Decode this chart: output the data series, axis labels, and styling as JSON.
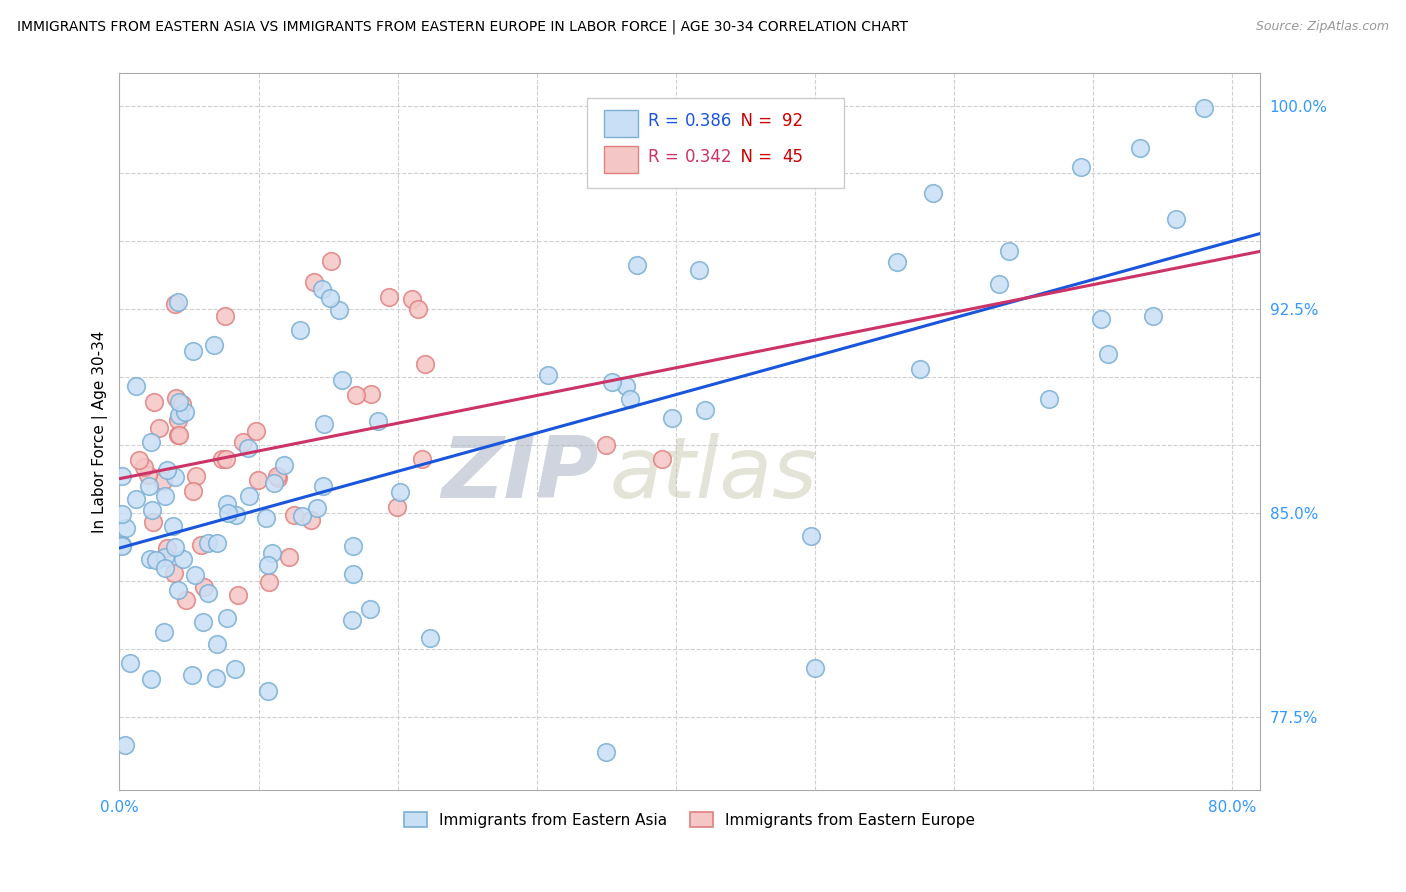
{
  "title": "IMMIGRANTS FROM EASTERN ASIA VS IMMIGRANTS FROM EASTERN EUROPE IN LABOR FORCE | AGE 30-34 CORRELATION CHART",
  "source": "Source: ZipAtlas.com",
  "ylabel": "In Labor Force | Age 30-34",
  "xlim": [
    0.0,
    0.82
  ],
  "ylim": [
    0.748,
    1.012
  ],
  "R_asia": 0.386,
  "N_asia": 92,
  "R_europe": 0.342,
  "N_europe": 45,
  "color_asia_face": "#c9dff5",
  "color_asia_edge": "#7bafd4",
  "color_europe_face": "#f5c6c6",
  "color_europe_edge": "#e08080",
  "trend_color_asia": "#1a56db",
  "trend_color_europe": "#cc3366",
  "watermark_zip": "ZIP",
  "watermark_atlas": "atlas",
  "legend_label_asia": "Immigrants from Eastern Asia",
  "legend_label_europe": "Immigrants from Eastern Europe",
  "xtick_positions": [
    0.0,
    0.1,
    0.2,
    0.3,
    0.4,
    0.5,
    0.6,
    0.7,
    0.8
  ],
  "xtick_labels": [
    "0.0%",
    "",
    "",
    "",
    "",
    "",
    "",
    "",
    "80.0%"
  ],
  "ytick_positions": [
    0.775,
    0.8,
    0.825,
    0.85,
    0.875,
    0.9,
    0.925,
    0.95,
    0.975,
    1.0
  ],
  "ytick_labels": [
    "77.5%",
    "",
    "",
    "85.0%",
    "",
    "",
    "92.5%",
    "",
    "",
    "100.0%"
  ],
  "tick_color": "#3399ff",
  "R_color_asia": "#1a56db",
  "N_color_asia": "#cc0000",
  "R_color_europe": "#cc3366",
  "N_color_europe": "#cc0000"
}
